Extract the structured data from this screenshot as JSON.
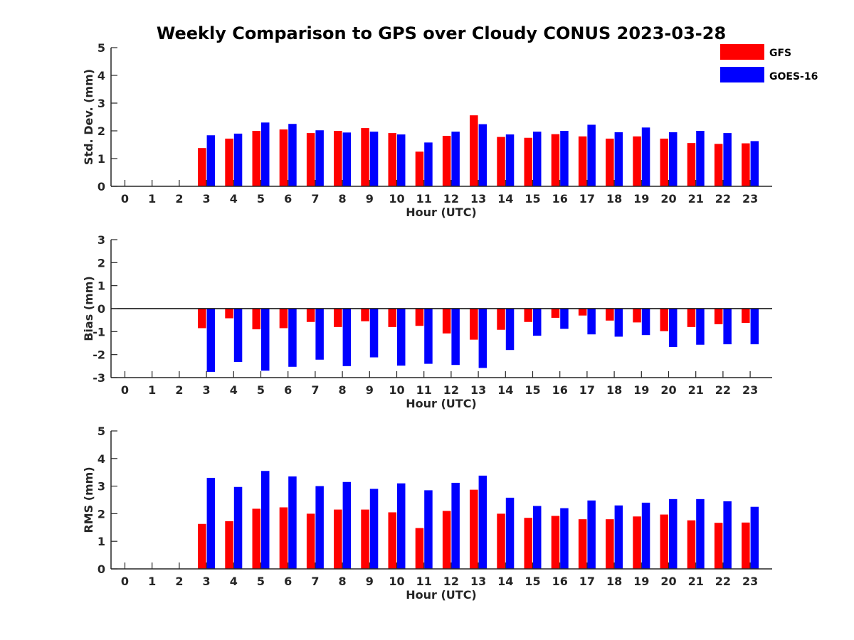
{
  "title": "Weekly Comparison to GPS over Cloudy CONUS 2023-03-28",
  "legend": {
    "position": "top-right",
    "items": [
      {
        "name": "GFS",
        "color": "#ff0000"
      },
      {
        "name": "GOES-16",
        "color": "#0000ff"
      }
    ]
  },
  "chart_data": [
    {
      "type": "bar",
      "xlabel": "Hour (UTC)",
      "ylabel": "Std. Dev. (mm)",
      "categories": [
        "0",
        "1",
        "2",
        "3",
        "4",
        "5",
        "6",
        "7",
        "8",
        "9",
        "10",
        "11",
        "12",
        "13",
        "14",
        "15",
        "16",
        "17",
        "18",
        "19",
        "20",
        "21",
        "22",
        "23"
      ],
      "ylim": [
        0,
        5
      ],
      "yticks": [
        0,
        1,
        2,
        3,
        4,
        5
      ],
      "zero_line": false,
      "series": [
        {
          "name": "GFS",
          "color": "#ff0000",
          "values": [
            null,
            null,
            null,
            1.38,
            1.72,
            2.0,
            2.05,
            1.92,
            2.0,
            2.1,
            1.92,
            1.25,
            1.82,
            2.56,
            1.78,
            1.75,
            1.88,
            1.8,
            1.72,
            1.8,
            1.72,
            1.56,
            1.53,
            1.55
          ]
        },
        {
          "name": "GOES-16",
          "color": "#0000ff",
          "values": [
            null,
            null,
            null,
            1.84,
            1.9,
            2.3,
            2.25,
            2.02,
            1.94,
            1.97,
            1.87,
            1.58,
            1.97,
            2.24,
            1.87,
            1.97,
            2.0,
            2.22,
            1.95,
            2.12,
            1.95,
            2.0,
            1.92,
            1.63
          ]
        }
      ]
    },
    {
      "type": "bar",
      "xlabel": "Hour (UTC)",
      "ylabel": "Bias (mm)",
      "categories": [
        "0",
        "1",
        "2",
        "3",
        "4",
        "5",
        "6",
        "7",
        "8",
        "9",
        "10",
        "11",
        "12",
        "13",
        "14",
        "15",
        "16",
        "17",
        "18",
        "19",
        "20",
        "21",
        "22",
        "23"
      ],
      "ylim": [
        -3,
        3
      ],
      "yticks": [
        -3,
        -2,
        -1,
        0,
        1,
        2,
        3
      ],
      "zero_line": true,
      "series": [
        {
          "name": "GFS",
          "color": "#ff0000",
          "values": [
            null,
            null,
            null,
            -0.85,
            -0.42,
            -0.9,
            -0.85,
            -0.58,
            -0.8,
            -0.55,
            -0.8,
            -0.75,
            -1.08,
            -1.35,
            -0.92,
            -0.58,
            -0.4,
            -0.3,
            -0.52,
            -0.6,
            -0.98,
            -0.8,
            -0.68,
            -0.62
          ]
        },
        {
          "name": "GOES-16",
          "color": "#0000ff",
          "values": [
            null,
            null,
            null,
            -2.75,
            -2.32,
            -2.7,
            -2.53,
            -2.22,
            -2.5,
            -2.12,
            -2.48,
            -2.4,
            -2.45,
            -2.58,
            -1.8,
            -1.18,
            -0.88,
            -1.12,
            -1.22,
            -1.15,
            -1.67,
            -1.57,
            -1.55,
            -1.55
          ]
        }
      ]
    },
    {
      "type": "bar",
      "xlabel": "Hour (UTC)",
      "ylabel": "RMS (mm)",
      "categories": [
        "0",
        "1",
        "2",
        "3",
        "4",
        "5",
        "6",
        "7",
        "8",
        "9",
        "10",
        "11",
        "12",
        "13",
        "14",
        "15",
        "16",
        "17",
        "18",
        "19",
        "20",
        "21",
        "22",
        "23"
      ],
      "ylim": [
        0,
        5
      ],
      "yticks": [
        0,
        1,
        2,
        3,
        4,
        5
      ],
      "zero_line": false,
      "series": [
        {
          "name": "GFS",
          "color": "#ff0000",
          "values": [
            null,
            null,
            null,
            1.63,
            1.73,
            2.18,
            2.23,
            2.0,
            2.15,
            2.15,
            2.05,
            1.48,
            2.1,
            2.87,
            2.0,
            1.85,
            1.92,
            1.8,
            1.8,
            1.9,
            1.97,
            1.76,
            1.67,
            1.68
          ]
        },
        {
          "name": "GOES-16",
          "color": "#0000ff",
          "values": [
            null,
            null,
            null,
            3.3,
            2.97,
            3.55,
            3.35,
            3.0,
            3.15,
            2.9,
            3.1,
            2.85,
            3.12,
            3.38,
            2.58,
            2.28,
            2.2,
            2.48,
            2.3,
            2.4,
            2.53,
            2.53,
            2.45,
            2.25
          ]
        }
      ]
    }
  ]
}
